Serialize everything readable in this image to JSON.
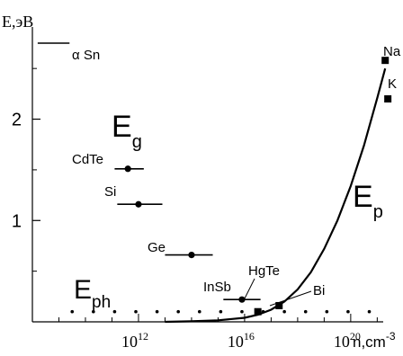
{
  "chart_data": {
    "type": "scatter",
    "ylabel": "E,эВ",
    "xlabel_parts": {
      "base": "n,cm",
      "sup": "-3"
    },
    "xscale": "log",
    "xlim_exp": [
      8,
      21.7
    ],
    "ylim": [
      0,
      2.75
    ],
    "x_ticks": [
      {
        "exp": 12,
        "label": "10",
        "sup": "12"
      },
      {
        "exp": 16,
        "label": "10",
        "sup": "16"
      },
      {
        "exp": 20,
        "label": "10",
        "sup": "20"
      }
    ],
    "y_ticks": [
      {
        "value": 1,
        "label": "1"
      },
      {
        "value": 2,
        "label": "2"
      }
    ],
    "grid": false,
    "region_labels": {
      "Eg": {
        "main": "E",
        "sub": "g"
      },
      "Ep": {
        "main": "E",
        "sub": "p"
      },
      "Eph": {
        "main": "E",
        "sub": "ph"
      }
    },
    "materials": [
      {
        "name": "α Sn",
        "n_exp": 8.5,
        "x_err": [
          8.2,
          9.4
        ],
        "E": 2.75,
        "marker": "none"
      },
      {
        "name": "CdTe",
        "n_exp": 11.6,
        "x_err": [
          11.1,
          12.2
        ],
        "E": 1.51,
        "marker": "circle"
      },
      {
        "name": "Si",
        "n_exp": 12.0,
        "x_err": [
          11.2,
          12.9
        ],
        "E": 1.16,
        "marker": "circle"
      },
      {
        "name": "Ge",
        "n_exp": 14.0,
        "x_err": [
          13.0,
          14.8
        ],
        "E": 0.66,
        "marker": "circle"
      },
      {
        "name": "InSb",
        "n_exp": 15.9,
        "x_err": [
          15.2,
          16.6
        ],
        "E": 0.22,
        "marker": "circle"
      },
      {
        "name": "HgTe",
        "n_exp": 16.5,
        "E": 0.1,
        "marker": "square"
      },
      {
        "name": "Bi",
        "n_exp": 17.3,
        "E": 0.16,
        "marker": "square"
      },
      {
        "name": "Na",
        "n_exp": 21.3,
        "E": 2.58,
        "marker": "square"
      },
      {
        "name": "K",
        "n_exp": 21.4,
        "E": 2.2,
        "marker": "square"
      }
    ],
    "plasma_curve": {
      "n_exp": [
        13.0,
        14.0,
        15.0,
        16.0,
        16.5,
        17.0,
        17.5,
        18.0,
        18.5,
        19.0,
        19.5,
        20.0,
        20.5,
        21.0,
        21.3
      ],
      "E": [
        0.0,
        0.005,
        0.015,
        0.04,
        0.07,
        0.12,
        0.2,
        0.32,
        0.49,
        0.72,
        1.0,
        1.34,
        1.74,
        2.21,
        2.5
      ]
    },
    "phonon_level": {
      "E": 0.1,
      "n_exp": [
        9.5,
        10.3,
        11.1,
        11.9,
        12.7,
        13.5,
        14.3,
        15.1,
        15.9,
        16.7,
        17.5,
        18.3,
        19.1,
        19.9,
        20.7
      ]
    }
  }
}
